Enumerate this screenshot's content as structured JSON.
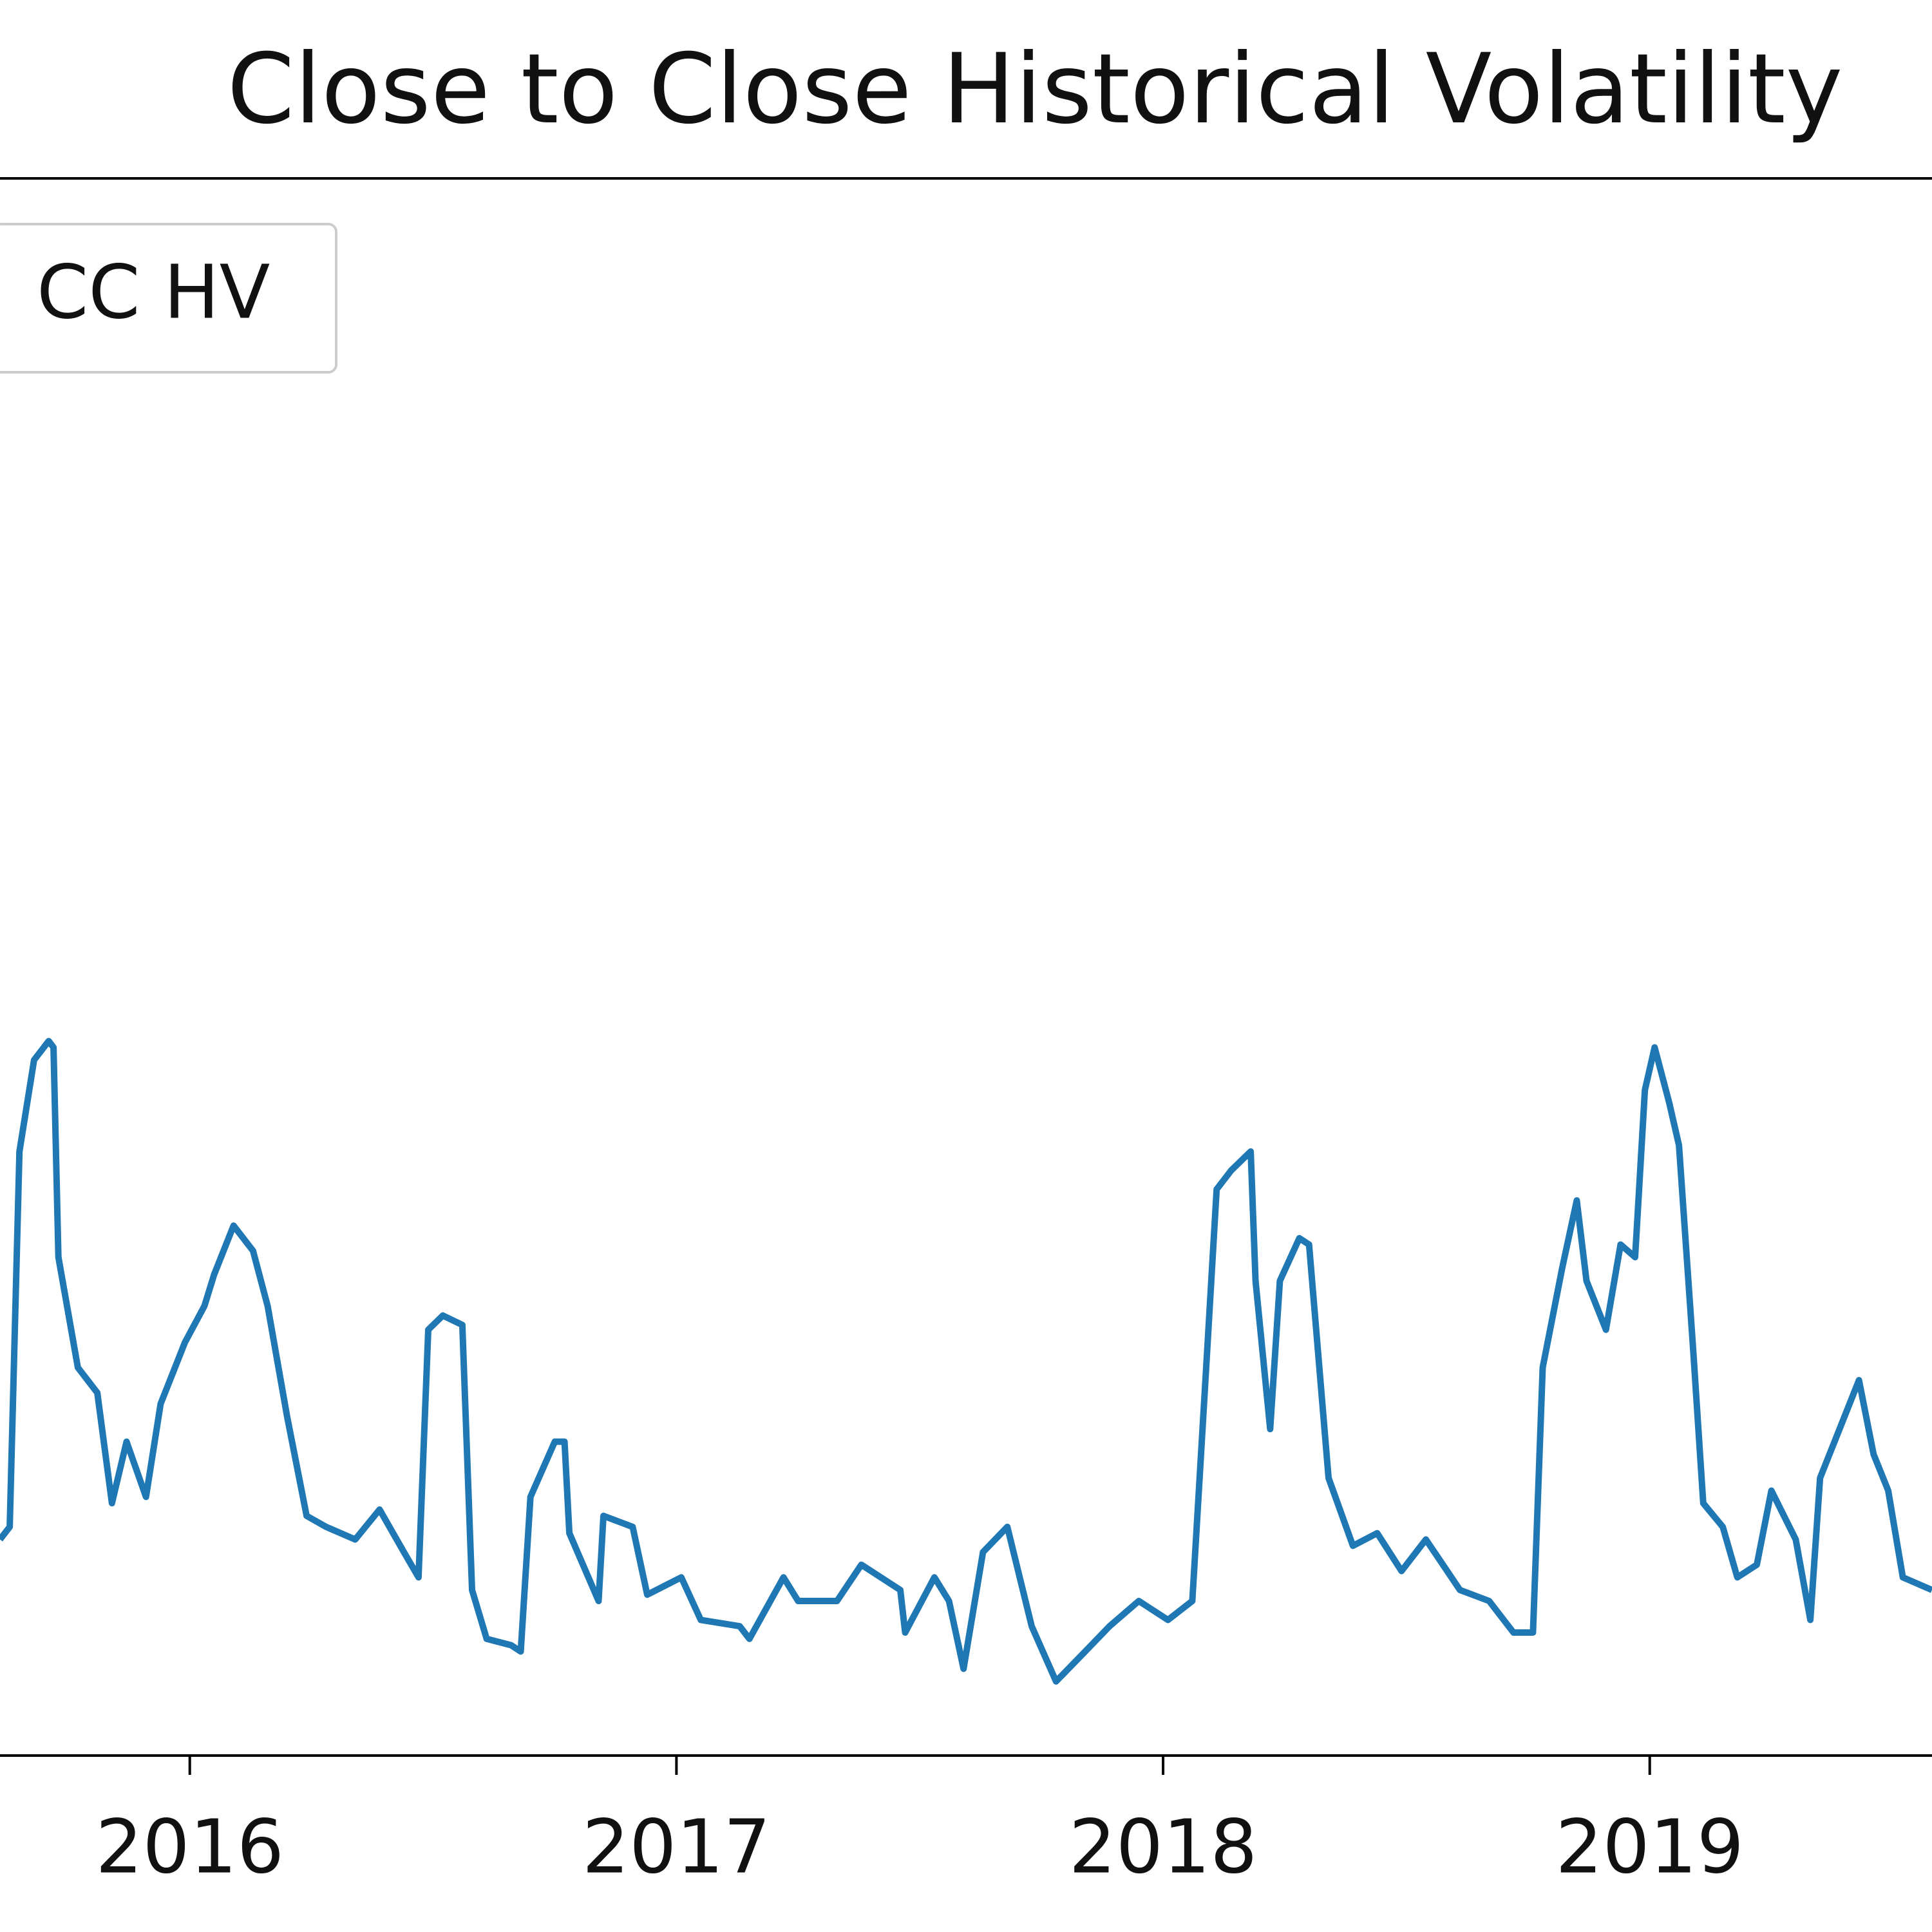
{
  "chart_data": {
    "type": "line",
    "title": "Close to Close Historical Volatility",
    "legend": "upper left",
    "xlim": [
      2015.61,
      2019.58
    ],
    "xticks": [
      2016,
      2017,
      2018,
      2019
    ],
    "ylim": [
      0,
      100
    ],
    "series": [
      {
        "name": "CC HV",
        "color": "#1f77b4",
        "x": [
          2015.61,
          2015.63,
          2015.65,
          2015.68,
          2015.71,
          2015.72,
          2015.73,
          2015.77,
          2015.81,
          2015.84,
          2015.87,
          2015.91,
          2015.94,
          2015.99,
          2016.03,
          2016.05,
          2016.09,
          2016.13,
          2016.16,
          2016.2,
          2016.24,
          2016.28,
          2016.34,
          2016.39,
          2016.44,
          2016.47,
          2016.49,
          2016.52,
          2016.56,
          2016.58,
          2016.61,
          2016.66,
          2016.68,
          2016.7,
          2016.75,
          2016.77,
          2016.78,
          2016.84,
          2016.85,
          2016.91,
          2016.94,
          2017.01,
          2017.05,
          2017.13,
          2017.15,
          2017.22,
          2017.25,
          2017.33,
          2017.38,
          2017.46,
          2017.47,
          2017.53,
          2017.56,
          2017.59,
          2017.63,
          2017.68,
          2017.73,
          2017.78,
          2017.84,
          2017.89,
          2017.95,
          2018.01,
          2018.06,
          2018.09,
          2018.11,
          2018.14,
          2018.18,
          2018.19,
          2018.22,
          2018.24,
          2018.28,
          2018.3,
          2018.34,
          2018.39,
          2018.44,
          2018.49,
          2018.54,
          2018.61,
          2018.67,
          2018.72,
          2018.76,
          2018.78,
          2018.82,
          2018.85,
          2018.87,
          2018.91,
          2018.94,
          2018.97,
          2018.99,
          2019.01,
          2019.04,
          2019.06,
          2019.09,
          2019.11,
          2019.15,
          2019.18,
          2019.22,
          2019.25,
          2019.3,
          2019.33,
          2019.35,
          2019.39,
          2019.43,
          2019.46,
          2019.49,
          2019.52,
          2019.58
        ],
        "values": [
          13.7,
          14.5,
          38.3,
          44.1,
          45.3,
          44.9,
          31.6,
          24.6,
          23.0,
          16.0,
          19.9,
          16.4,
          22.3,
          26.2,
          28.5,
          30.5,
          33.6,
          32.0,
          28.5,
          21.5,
          15.2,
          14.5,
          13.7,
          15.6,
          12.9,
          11.3,
          27.0,
          27.9,
          27.3,
          10.5,
          7.4,
          7.0,
          6.6,
          16.4,
          19.9,
          19.9,
          14.1,
          9.8,
          15.2,
          14.5,
          10.2,
          11.3,
          8.6,
          8.2,
          7.4,
          11.3,
          9.8,
          9.8,
          12.1,
          10.5,
          7.8,
          11.3,
          9.8,
          5.5,
          12.9,
          14.5,
          8.2,
          4.7,
          6.6,
          8.2,
          9.8,
          8.6,
          9.8,
          25.4,
          35.9,
          37.1,
          38.3,
          30.1,
          20.7,
          30.1,
          32.8,
          32.4,
          17.6,
          13.3,
          14.1,
          11.7,
          13.7,
          10.5,
          9.8,
          7.8,
          7.8,
          24.6,
          30.9,
          35.2,
          30.1,
          27.0,
          32.4,
          31.6,
          42.2,
          44.9,
          41.4,
          38.7,
          25.4,
          16.0,
          14.5,
          11.3,
          12.1,
          16.8,
          13.7,
          8.6,
          17.6,
          20.7,
          23.8,
          19.1,
          16.8,
          11.3,
          10.5
        ]
      }
    ]
  }
}
